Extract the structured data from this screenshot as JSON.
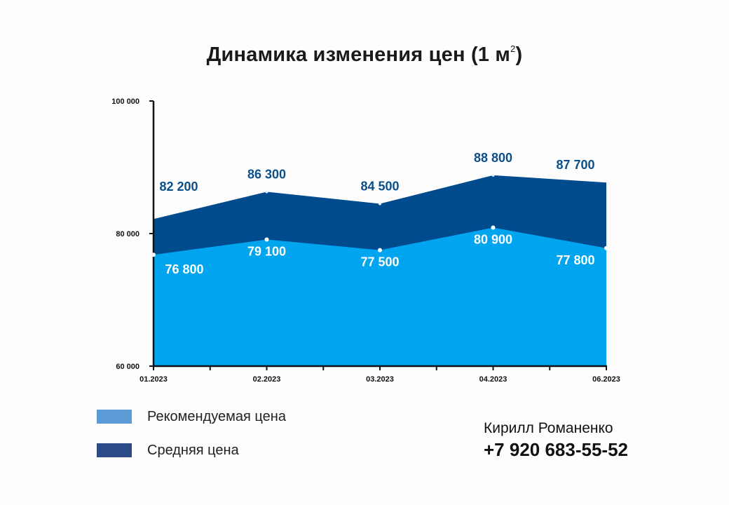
{
  "title": {
    "text": "Динамика изменения цен (1 м",
    "sup": "2",
    "close": ")"
  },
  "chart_data": {
    "type": "area",
    "categories": [
      "01.2023",
      "02.2023",
      "03.2023",
      "04.2023",
      "06.2023"
    ],
    "series": [
      {
        "name": "Рекомендуемая цена",
        "values": [
          76800,
          79100,
          77500,
          80900,
          77800
        ],
        "labels": [
          "76 800",
          "79 100",
          "77 500",
          "80 900",
          "77 800"
        ],
        "color": "#00a4ef"
      },
      {
        "name": "Средняя цена",
        "values": [
          82200,
          86300,
          84500,
          88800,
          87700
        ],
        "labels": [
          "82 200",
          "86 300",
          "84 500",
          "88 800",
          "87 700"
        ],
        "color": "#004a8e"
      }
    ],
    "ylim": [
      60000,
      100000
    ],
    "yticks": [
      60000,
      80000,
      100000
    ],
    "ytick_labels": [
      "60 000",
      "80 000",
      "100 000"
    ],
    "grid": false,
    "legend_position": "bottom-left"
  },
  "legend": {
    "items": [
      {
        "label": "Рекомендуемая цена",
        "color": "#5b9bd5"
      },
      {
        "label": "Средняя цена",
        "color": "#2b4a86"
      }
    ]
  },
  "contact": {
    "name": "Кирилл Романенко",
    "phone": "+7 920 683-55-52"
  },
  "colors": {
    "average_label": "#0b4f8a",
    "recommended_label": "#ffffff",
    "axis": "#111111"
  }
}
